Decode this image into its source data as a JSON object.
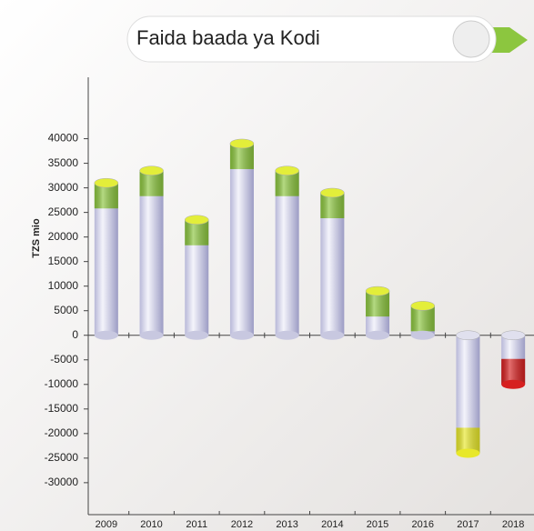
{
  "chart_data": {
    "type": "bar",
    "title": "Faida baada ya Kodi",
    "y_label": "TZS mio",
    "categories": [
      "2009",
      "2010",
      "2011",
      "2012",
      "2013",
      "2014",
      "2015",
      "2016",
      "2017",
      "2018"
    ],
    "values": [
      31000,
      33500,
      23500,
      39000,
      33500,
      29000,
      9000,
      6000,
      -24000,
      -10000
    ],
    "colors": [
      "#8cc63f",
      "#8cc63f",
      "#8cc63f",
      "#8cc63f",
      "#8cc63f",
      "#8cc63f",
      "#8cc63f",
      "#8cc63f",
      "#e8e82a",
      "#d62020"
    ],
    "ylim": [
      -36500,
      52500
    ],
    "yticks": [
      40000,
      35000,
      30000,
      25000,
      20000,
      15000,
      10000,
      5000,
      0,
      -5000,
      -10000,
      -15000,
      -20000,
      -25000,
      -30000
    ]
  }
}
